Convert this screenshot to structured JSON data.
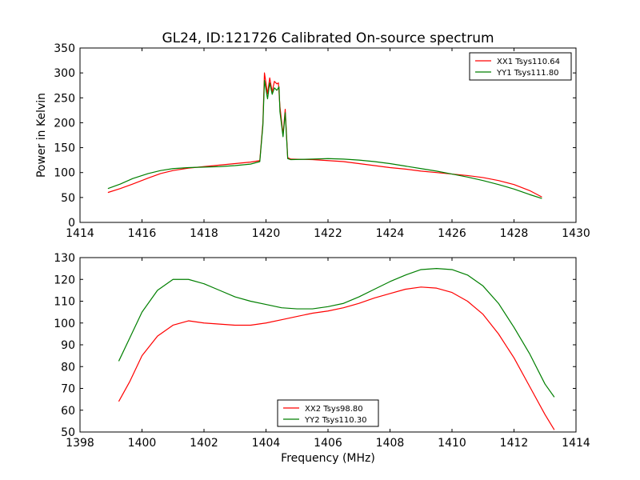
{
  "figure_title": "GL24, ID:121726 Calibrated On-source spectrum",
  "chart_data": [
    {
      "type": "line",
      "title": "GL24, ID:121726 Calibrated On-source spectrum",
      "xlabel": "",
      "ylabel": "Power in Kelvin",
      "xlim": [
        1414,
        1430
      ],
      "ylim": [
        0,
        350
      ],
      "xticks": [
        1414,
        1416,
        1418,
        1420,
        1422,
        1424,
        1426,
        1428,
        1430
      ],
      "yticks": [
        0,
        50,
        100,
        150,
        200,
        250,
        300,
        350
      ],
      "grid": false,
      "legend_position": "top-right",
      "series": [
        {
          "name": "XX1 Tsys110.64",
          "color": "#ff0000",
          "points": [
            [
              1414.9,
              60
            ],
            [
              1415.3,
              68
            ],
            [
              1415.7,
              77
            ],
            [
              1416.2,
              89
            ],
            [
              1416.6,
              98
            ],
            [
              1417.0,
              104
            ],
            [
              1417.5,
              109
            ],
            [
              1418.0,
              112
            ],
            [
              1418.5,
              115
            ],
            [
              1419.0,
              118
            ],
            [
              1419.5,
              121
            ],
            [
              1419.8,
              124
            ],
            [
              1419.9,
              200
            ],
            [
              1419.95,
              300
            ],
            [
              1420.05,
              258
            ],
            [
              1420.12,
              290
            ],
            [
              1420.2,
              262
            ],
            [
              1420.27,
              283
            ],
            [
              1420.35,
              278
            ],
            [
              1420.4,
              280
            ],
            [
              1420.45,
              232
            ],
            [
              1420.55,
              176
            ],
            [
              1420.62,
              227
            ],
            [
              1420.7,
              130
            ],
            [
              1420.8,
              127
            ],
            [
              1421.5,
              126
            ],
            [
              1422.0,
              124
            ],
            [
              1422.5,
              122
            ],
            [
              1423.0,
              118
            ],
            [
              1423.5,
              114
            ],
            [
              1424.0,
              110
            ],
            [
              1424.5,
              107
            ],
            [
              1425.0,
              103
            ],
            [
              1425.5,
              100
            ],
            [
              1426.0,
              97
            ],
            [
              1426.5,
              94
            ],
            [
              1427.0,
              90
            ],
            [
              1427.5,
              84
            ],
            [
              1428.0,
              76
            ],
            [
              1428.5,
              64
            ],
            [
              1428.9,
              51
            ]
          ]
        },
        {
          "name": "YY1 Tsys111.80",
          "color": "#007f00",
          "points": [
            [
              1414.9,
              68
            ],
            [
              1415.3,
              77
            ],
            [
              1415.7,
              88
            ],
            [
              1416.2,
              98
            ],
            [
              1416.6,
              104
            ],
            [
              1417.0,
              108
            ],
            [
              1417.5,
              110
            ],
            [
              1418.0,
              111
            ],
            [
              1418.5,
              112
            ],
            [
              1419.0,
              114
            ],
            [
              1419.5,
              117
            ],
            [
              1419.8,
              122
            ],
            [
              1419.9,
              195
            ],
            [
              1419.95,
              285
            ],
            [
              1420.05,
              248
            ],
            [
              1420.12,
              280
            ],
            [
              1420.2,
              257
            ],
            [
              1420.27,
              270
            ],
            [
              1420.35,
              265
            ],
            [
              1420.42,
              272
            ],
            [
              1420.45,
              222
            ],
            [
              1420.55,
              172
            ],
            [
              1420.62,
              220
            ],
            [
              1420.7,
              128
            ],
            [
              1420.8,
              126
            ],
            [
              1421.5,
              127
            ],
            [
              1422.0,
              128
            ],
            [
              1422.5,
              127
            ],
            [
              1423.0,
              125
            ],
            [
              1423.5,
              122
            ],
            [
              1424.0,
              118
            ],
            [
              1424.5,
              113
            ],
            [
              1425.0,
              108
            ],
            [
              1425.5,
              103
            ],
            [
              1426.0,
              97
            ],
            [
              1426.5,
              91
            ],
            [
              1427.0,
              84
            ],
            [
              1427.5,
              76
            ],
            [
              1428.0,
              67
            ],
            [
              1428.5,
              56
            ],
            [
              1428.9,
              48
            ]
          ]
        }
      ]
    },
    {
      "type": "line",
      "title": "",
      "xlabel": "Frequency (MHz)",
      "ylabel": "",
      "xlim": [
        1398,
        1414
      ],
      "ylim": [
        50,
        130
      ],
      "xticks": [
        1398,
        1400,
        1402,
        1404,
        1406,
        1408,
        1410,
        1412,
        1414
      ],
      "yticks": [
        50,
        60,
        70,
        80,
        90,
        100,
        110,
        120,
        130
      ],
      "grid": false,
      "legend_position": "bottom-center",
      "series": [
        {
          "name": "XX2 Tsys98.80",
          "color": "#ff0000",
          "points": [
            [
              1399.25,
              64
            ],
            [
              1399.6,
              73
            ],
            [
              1400.0,
              85
            ],
            [
              1400.5,
              94
            ],
            [
              1401.0,
              99
            ],
            [
              1401.5,
              101
            ],
            [
              1402.0,
              100
            ],
            [
              1402.5,
              99.5
            ],
            [
              1403.0,
              99
            ],
            [
              1403.5,
              99
            ],
            [
              1404.0,
              100
            ],
            [
              1404.5,
              101.5
            ],
            [
              1405.0,
              103
            ],
            [
              1405.5,
              104.5
            ],
            [
              1406.0,
              105.5
            ],
            [
              1406.5,
              107
            ],
            [
              1407.0,
              109
            ],
            [
              1407.5,
              111.5
            ],
            [
              1408.0,
              113.5
            ],
            [
              1408.5,
              115.5
            ],
            [
              1409.0,
              116.5
            ],
            [
              1409.5,
              116
            ],
            [
              1410.0,
              114
            ],
            [
              1410.5,
              110
            ],
            [
              1411.0,
              104
            ],
            [
              1411.5,
              95
            ],
            [
              1412.0,
              84
            ],
            [
              1412.5,
              71
            ],
            [
              1413.0,
              58
            ],
            [
              1413.3,
              51
            ]
          ]
        },
        {
          "name": "YY2 Tsys110.30",
          "color": "#007f00",
          "points": [
            [
              1399.25,
              82.5
            ],
            [
              1399.6,
              93
            ],
            [
              1400.0,
              105
            ],
            [
              1400.5,
              115
            ],
            [
              1401.0,
              120
            ],
            [
              1401.5,
              120
            ],
            [
              1402.0,
              118
            ],
            [
              1402.5,
              115
            ],
            [
              1403.0,
              112
            ],
            [
              1403.5,
              110
            ],
            [
              1404.0,
              108.5
            ],
            [
              1404.5,
              107
            ],
            [
              1405.0,
              106.5
            ],
            [
              1405.5,
              106.5
            ],
            [
              1406.0,
              107.5
            ],
            [
              1406.5,
              109
            ],
            [
              1407.0,
              112
            ],
            [
              1407.5,
              115.5
            ],
            [
              1408.0,
              119
            ],
            [
              1408.5,
              122
            ],
            [
              1409.0,
              124.5
            ],
            [
              1409.5,
              125
            ],
            [
              1410.0,
              124.5
            ],
            [
              1410.5,
              122
            ],
            [
              1411.0,
              117
            ],
            [
              1411.5,
              109
            ],
            [
              1412.0,
              98
            ],
            [
              1412.5,
              86
            ],
            [
              1413.0,
              72
            ],
            [
              1413.3,
              66
            ]
          ]
        }
      ]
    }
  ]
}
